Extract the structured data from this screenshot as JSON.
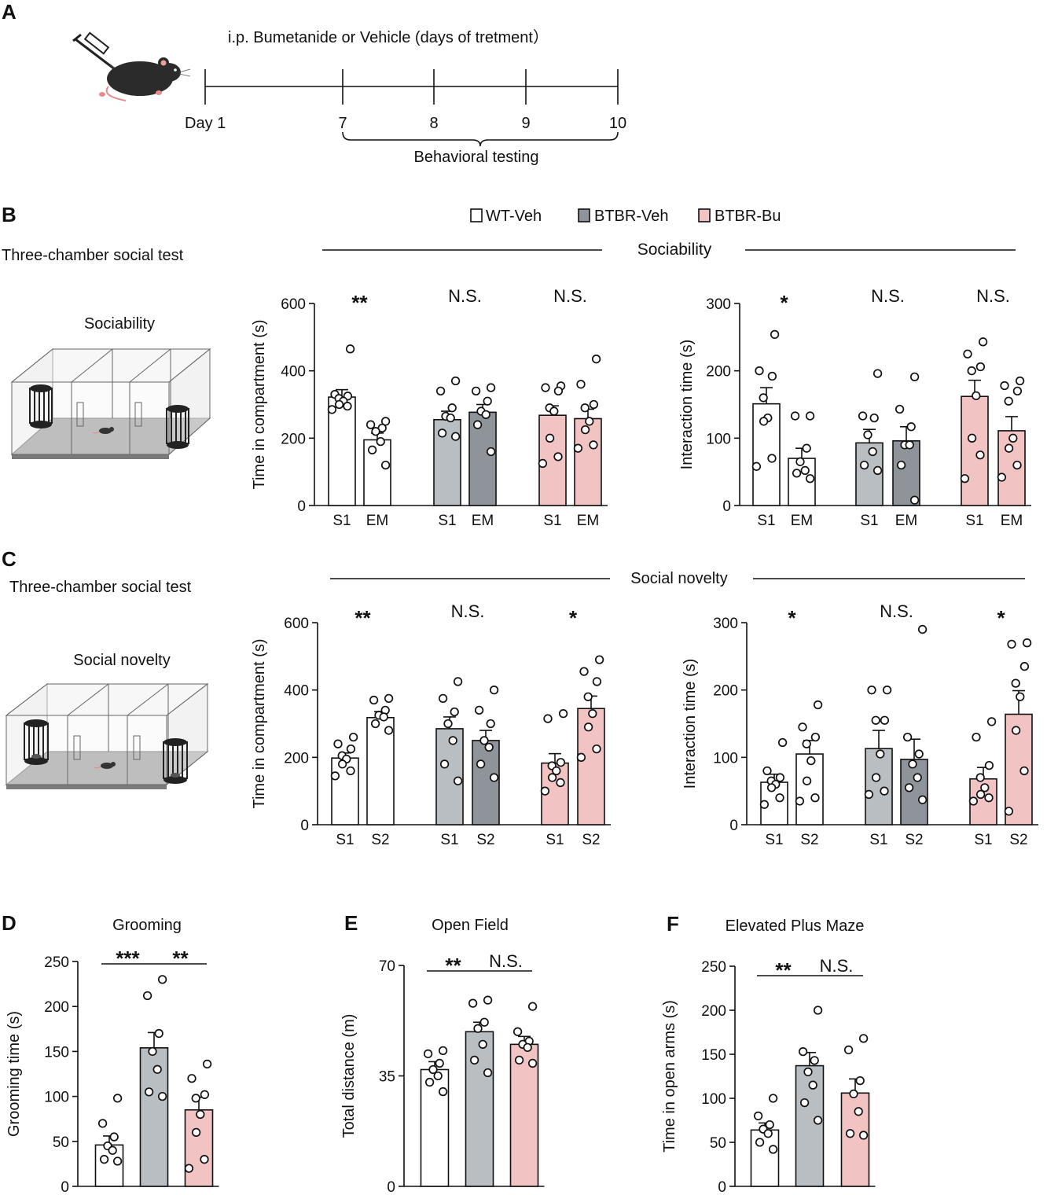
{
  "colors": {
    "wt": "#ffffff",
    "btbr_veh": "#b9bec3",
    "btbr_veh_dark": "#8e949a",
    "btbr_bu": "#f2c3c3",
    "outline": "#111111",
    "mouse_accent": "#e88b8b"
  },
  "panel_a": {
    "letter": "A",
    "title": "i.p. Bumetanide or Vehicle (days  of tretment）",
    "days": [
      "Day 1",
      "7",
      "8",
      "9",
      "10"
    ],
    "bracket_label": "Behavioral testing",
    "icons": [
      "syringe-icon",
      "mouse-icon"
    ]
  },
  "legend": [
    {
      "label": "WT-Veh",
      "color_key": "wt"
    },
    {
      "label": "BTBR-Veh",
      "color_key": "btbr_veh_dark"
    },
    {
      "label": "BTBR-Bu",
      "color_key": "btbr_bu"
    }
  ],
  "panel_b": {
    "letter": "B",
    "test_title": "Three-chamber social test",
    "diagram_label": "Sociability",
    "header": "Sociability"
  },
  "panel_c": {
    "letter": "C",
    "test_title": "Three-chamber social test",
    "diagram_label": "Social novelty",
    "header": "Social novelty"
  },
  "chart_data": [
    {
      "id": "B1",
      "type": "bar",
      "ylabel": "Time in compartment (s)",
      "ylim": [
        0,
        600
      ],
      "yticks": [
        0,
        200,
        400,
        600
      ],
      "categories": [
        "S1",
        "EM",
        "S1",
        "EM",
        "S1",
        "EM"
      ],
      "groups": [
        "WT-Veh",
        "WT-Veh",
        "BTBR-Veh",
        "BTBR-Veh",
        "BTBR-Bu",
        "BTBR-Bu"
      ],
      "values": [
        322,
        195,
        255,
        277,
        268,
        258
      ],
      "sem": [
        22,
        20,
        25,
        23,
        28,
        28
      ],
      "points": [
        [
          465,
          330,
          325,
          318,
          310,
          300,
          295,
          285
        ],
        [
          250,
          240,
          230,
          220,
          190,
          165,
          120
        ],
        [
          370,
          340,
          290,
          265,
          260,
          215,
          205
        ],
        [
          350,
          340,
          310,
          280,
          270,
          240,
          160
        ],
        [
          355,
          350,
          340,
          290,
          280,
          200,
          145,
          125
        ],
        [
          435,
          360,
          300,
          290,
          250,
          225,
          180,
          170
        ]
      ],
      "significance": [
        "**",
        "N.S.",
        "N.S."
      ]
    },
    {
      "id": "B2",
      "type": "bar",
      "ylabel": "Interaction time (s)",
      "ylim": [
        0,
        300
      ],
      "yticks": [
        0,
        100,
        200,
        300
      ],
      "categories": [
        "S1",
        "EM",
        "S1",
        "EM",
        "S1",
        "EM"
      ],
      "groups": [
        "WT-Veh",
        "WT-Veh",
        "BTBR-Veh",
        "BTBR-Veh",
        "BTBR-Bu",
        "BTBR-Bu"
      ],
      "values": [
        151,
        70,
        93,
        96,
        162,
        111
      ],
      "sem": [
        24,
        15,
        20,
        21,
        24,
        21
      ],
      "points": [
        [
          254,
          200,
          192,
          160,
          130,
          125,
          70,
          58
        ],
        [
          133,
          133,
          85,
          65,
          52,
          48,
          40
        ],
        [
          196,
          133,
          130,
          105,
          80,
          60,
          52
        ],
        [
          191,
          143,
          117,
          90,
          90,
          60,
          8
        ],
        [
          243,
          225,
          206,
          200,
          163,
          100,
          75,
          40
        ],
        [
          185,
          178,
          170,
          155,
          100,
          85,
          60,
          42
        ]
      ],
      "significance": [
        "*",
        "N.S.",
        "N.S."
      ]
    },
    {
      "id": "C1",
      "type": "bar",
      "ylabel": "Time in compartment (s)",
      "ylim": [
        0,
        600
      ],
      "yticks": [
        0,
        200,
        400,
        600
      ],
      "categories": [
        "S1",
        "S2",
        "S1",
        "S2",
        "S1",
        "S2"
      ],
      "groups": [
        "WT-Veh",
        "WT-Veh",
        "BTBR-Veh",
        "BTBR-Veh",
        "BTBR-Bu",
        "BTBR-Bu"
      ],
      "values": [
        198,
        318,
        285,
        250,
        183,
        345
      ],
      "sem": [
        15,
        18,
        35,
        30,
        28,
        37
      ],
      "points": [
        [
          260,
          240,
          225,
          205,
          195,
          180,
          160,
          145
        ],
        [
          375,
          370,
          340,
          325,
          320,
          300,
          280
        ],
        [
          425,
          375,
          335,
          300,
          250,
          180,
          130
        ],
        [
          400,
          340,
          300,
          250,
          230,
          180,
          140
        ],
        [
          330,
          315,
          185,
          175,
          160,
          140,
          125,
          100
        ],
        [
          490,
          455,
          425,
          380,
          330,
          290,
          225,
          200
        ]
      ],
      "significance": [
        "**",
        "N.S.",
        "*"
      ]
    },
    {
      "id": "C2",
      "type": "bar",
      "ylabel": "Interaction time (s)",
      "ylim": [
        0,
        300
      ],
      "yticks": [
        0,
        100,
        200,
        300
      ],
      "categories": [
        "S1",
        "S2",
        "S1",
        "S2",
        "S1",
        "S2"
      ],
      "groups": [
        "WT-Veh",
        "WT-Veh",
        "BTBR-Veh",
        "BTBR-Veh",
        "BTBR-Bu",
        "BTBR-Bu"
      ],
      "values": [
        63,
        105,
        113,
        97,
        68,
        164
      ],
      "sem": [
        12,
        20,
        27,
        30,
        17,
        35
      ],
      "points": [
        [
          122,
          80,
          70,
          65,
          60,
          55,
          40,
          30
        ],
        [
          178,
          145,
          130,
          120,
          95,
          65,
          40,
          35
        ],
        [
          200,
          200,
          155,
          155,
          105,
          70,
          50,
          45
        ],
        [
          290,
          130,
          105,
          90,
          70,
          55,
          37
        ],
        [
          153,
          130,
          88,
          70,
          55,
          45,
          40,
          35
        ],
        [
          270,
          268,
          235,
          210,
          190,
          140,
          80,
          20
        ]
      ],
      "significance": [
        "*",
        "N.S.",
        "*"
      ]
    },
    {
      "id": "D",
      "type": "bar",
      "letter": "D",
      "title": "Grooming",
      "ylabel": "Grooming time (s)",
      "ylim": [
        0,
        250
      ],
      "yticks": [
        0,
        50,
        100,
        150,
        200,
        250
      ],
      "groups": [
        "WT-Veh",
        "BTBR-Veh",
        "BTBR-Bu"
      ],
      "values": [
        46,
        154,
        85
      ],
      "sem": [
        10,
        17,
        14
      ],
      "points": [
        [
          98,
          70,
          55,
          45,
          40,
          30,
          28
        ],
        [
          230,
          212,
          170,
          150,
          130,
          105,
          100
        ],
        [
          136,
          120,
          102,
          98,
          80,
          60,
          30,
          20
        ]
      ],
      "brackets": [
        {
          "from": 0,
          "to": 1,
          "label": "***"
        },
        {
          "from": 1,
          "to": 2,
          "label": "**"
        }
      ]
    },
    {
      "id": "E",
      "type": "bar",
      "letter": "E",
      "title": "Open Field",
      "ylabel": "Total distance (m)",
      "ylim": [
        0,
        70
      ],
      "yticks": [
        0,
        35,
        70
      ],
      "groups": [
        "WT-Veh",
        "BTBR-Veh",
        "BTBR-Bu"
      ],
      "values": [
        37,
        49,
        45
      ],
      "sem": [
        2.5,
        3,
        2.5
      ],
      "points": [
        [
          43,
          42,
          39,
          37,
          35,
          33,
          30
        ],
        [
          59,
          58,
          52,
          50,
          45,
          40,
          36
        ],
        [
          57,
          49,
          46,
          45,
          44,
          40,
          39
        ]
      ],
      "brackets": [
        {
          "from": 0,
          "to": 1,
          "label": "**"
        },
        {
          "from": 1,
          "to": 2,
          "label": "N.S."
        }
      ]
    },
    {
      "id": "F",
      "type": "bar",
      "letter": "F",
      "title": "Elevated Plus Maze",
      "ylabel": "Time in open arms (s)",
      "ylim": [
        0,
        250
      ],
      "yticks": [
        0,
        50,
        100,
        150,
        200,
        250
      ],
      "groups": [
        "WT-Veh",
        "BTBR-Veh",
        "BTBR-Bu"
      ],
      "values": [
        64,
        137,
        106
      ],
      "sem": [
        8,
        15,
        16
      ],
      "points": [
        [
          100,
          80,
          70,
          65,
          60,
          50,
          42
        ],
        [
          200,
          153,
          143,
          130,
          115,
          95,
          75
        ],
        [
          168,
          155,
          120,
          105,
          85,
          60,
          58
        ]
      ],
      "brackets": [
        {
          "from": 0,
          "to": 1,
          "label": "**"
        },
        {
          "from": 1,
          "to": 2,
          "label": "N.S."
        }
      ]
    }
  ]
}
